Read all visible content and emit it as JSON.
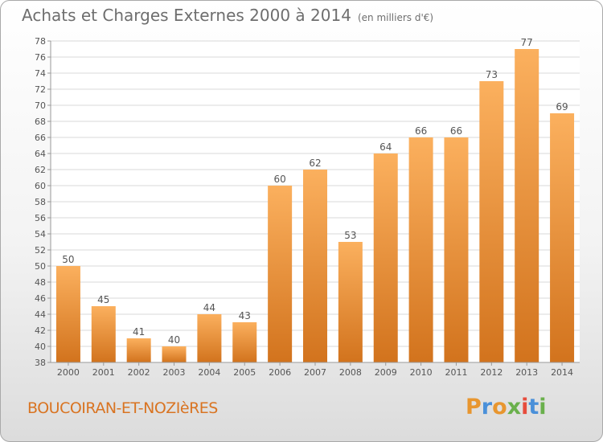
{
  "title": "Achats et Charges Externes 2000 à 2014",
  "subtitle": "(en milliers d'€)",
  "place": "BOUCOIRAN-ET-NOZIèRES",
  "logo": {
    "letters": [
      "P",
      "r",
      "o",
      "x",
      "i",
      "t",
      "i"
    ],
    "colors": [
      "#e8962f",
      "#4a90d9",
      "#e8962f",
      "#6ab04c",
      "#e74c3c",
      "#4a90d9",
      "#6ab04c"
    ]
  },
  "colors": {
    "bar_light": "#fbb05e",
    "bar_dark": "#d2731d",
    "axis_text": "#555555",
    "grid": "#d8d8d8"
  },
  "chart_data": {
    "type": "bar",
    "categories": [
      "2000",
      "2001",
      "2002",
      "2003",
      "2004",
      "2005",
      "2006",
      "2007",
      "2008",
      "2009",
      "2010",
      "2011",
      "2012",
      "2013",
      "2014"
    ],
    "values": [
      50,
      45,
      41,
      40,
      44,
      43,
      60,
      62,
      53,
      64,
      66,
      66,
      73,
      77,
      69
    ],
    "ylim": [
      38,
      78
    ],
    "yticks": [
      38,
      40,
      42,
      44,
      46,
      48,
      50,
      52,
      54,
      56,
      58,
      60,
      62,
      64,
      66,
      68,
      70,
      72,
      74,
      76,
      78
    ],
    "grid": true,
    "data_labels": true
  }
}
